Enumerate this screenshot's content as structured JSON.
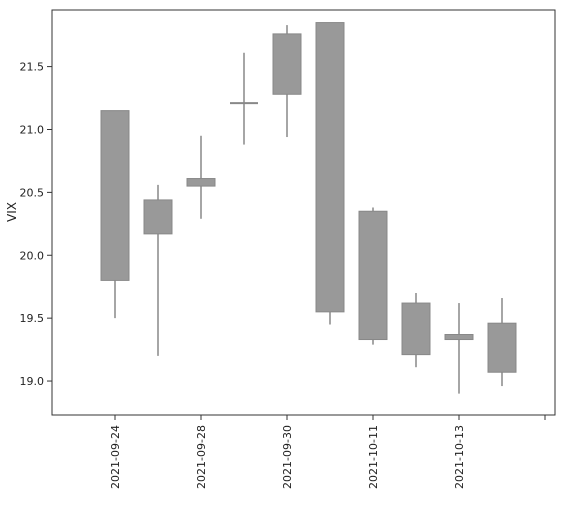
{
  "chart_data": {
    "type": "candlestick",
    "ylabel": "VIX",
    "xlabel": "",
    "ylim": [
      18.73,
      21.95
    ],
    "yticks": [
      19.0,
      19.5,
      20.0,
      20.5,
      21.0,
      21.5
    ],
    "ytick_labels": [
      "19.0",
      "19.5",
      "20.0",
      "20.5",
      "21.0",
      "21.5"
    ],
    "xtick_labels": [
      "2021-09-24",
      "2021-09-28",
      "2021-09-30",
      "2021-10-11",
      "2021-10-13"
    ],
    "grid": false,
    "colors": {
      "candle_fill": "#999999",
      "candle_edge": "#888888",
      "axis": "#333333"
    },
    "candles": [
      {
        "open": 19.8,
        "close": 21.15,
        "high": 21.15,
        "low": 19.5
      },
      {
        "open": 20.17,
        "close": 20.44,
        "high": 20.56,
        "low": 19.2
      },
      {
        "open": 20.55,
        "close": 20.61,
        "high": 20.95,
        "low": 20.29
      },
      {
        "open": 21.21,
        "close": 21.21,
        "high": 21.61,
        "low": 20.88
      },
      {
        "open": 21.28,
        "close": 21.76,
        "high": 21.83,
        "low": 20.94
      },
      {
        "open": 19.55,
        "close": 21.85,
        "high": 21.85,
        "low": 19.45
      },
      {
        "open": 19.33,
        "close": 20.35,
        "high": 20.38,
        "low": 19.29
      },
      {
        "open": 19.21,
        "close": 19.62,
        "high": 19.7,
        "low": 19.11
      },
      {
        "open": 19.33,
        "close": 19.37,
        "high": 19.62,
        "low": 18.9
      },
      {
        "open": 19.07,
        "close": 19.46,
        "high": 19.66,
        "low": 18.96
      }
    ]
  }
}
